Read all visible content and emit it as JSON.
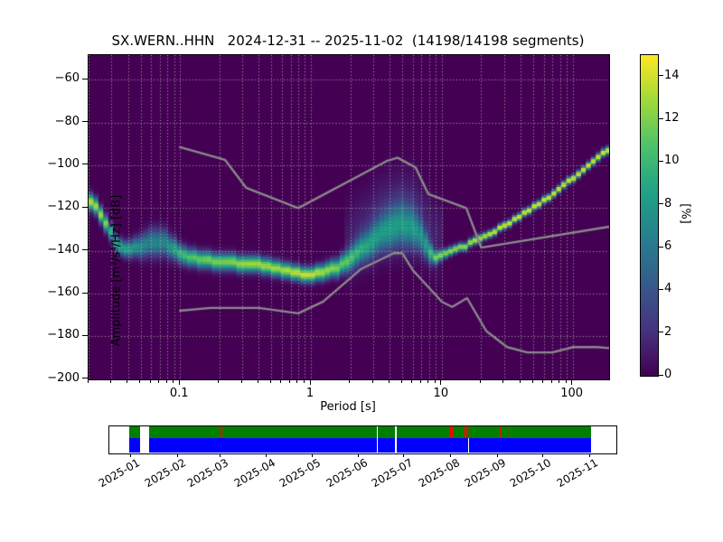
{
  "title": "SX.WERN..HHN   2024-12-31 -- 2025-11-02  (14198/14198 segments)",
  "station": "SX.WERN..HHN",
  "date_range": "2024-12-31 -- 2025-11-02",
  "segments": "14198/14198 segments",
  "axes": {
    "ylabel": "Amplitude [m²/s⁴/Hz] [dB]",
    "xlabel": "Period [s]",
    "y_ticks": [
      -60,
      -80,
      -100,
      -120,
      -140,
      -160,
      -180,
      -200
    ],
    "y_tick_labels": [
      "−60",
      "−80",
      "−100",
      "−120",
      "−140",
      "−160",
      "−180",
      "−200"
    ],
    "x_major_ticks": [
      0.1,
      1,
      10,
      100
    ],
    "x_major_labels": [
      "0.1",
      "1",
      "10",
      "100"
    ],
    "grid_color": "rgba(190,190,175,0.9)"
  },
  "colorbar": {
    "label": "[%]",
    "ticks": [
      0,
      2,
      4,
      6,
      8,
      10,
      12,
      14
    ],
    "vmax": 15,
    "vmin": 0
  },
  "chart_data": {
    "type": "heatmap",
    "title": "SX.WERN..HHN   2024-12-31 -- 2025-11-02  (14198/14198 segments)",
    "xlabel": "Period [s]",
    "ylabel": "Amplitude [m2/s4/Hz] [dB]",
    "x_scale": "log",
    "xlim": [
      0.02,
      190
    ],
    "ylim": [
      -200.1,
      -48.5
    ],
    "colormap": "viridis",
    "colorbar_label": "[%]",
    "colorbar_range": [
      0,
      15
    ],
    "background_value_color": "#440154",
    "period_bins_per_octave": 8,
    "db_bin_width": 1,
    "ppsd_mode_ridge": {
      "columns": [
        "period_s",
        "mode_db",
        "peak_percent",
        "sigma_db"
      ],
      "points": [
        [
          0.02,
          -115.5,
          14,
          2.5
        ],
        [
          0.022,
          -118,
          13,
          2.5
        ],
        [
          0.025,
          -123,
          13,
          2.5
        ],
        [
          0.028,
          -128,
          12,
          2.5
        ],
        [
          0.03,
          -132,
          9,
          2.5
        ],
        [
          0.033,
          -137.5,
          9,
          2.5
        ],
        [
          0.038,
          -139.5,
          9,
          2.5
        ],
        [
          0.045,
          -138.5,
          8,
          3
        ],
        [
          0.055,
          -136.5,
          7,
          4
        ],
        [
          0.065,
          -135.5,
          7,
          4.5
        ],
        [
          0.075,
          -136,
          7,
          4.2
        ],
        [
          0.085,
          -138,
          8,
          3.6
        ],
        [
          0.1,
          -141.5,
          10,
          3
        ],
        [
          0.12,
          -143,
          11,
          2.7
        ],
        [
          0.17,
          -144.5,
          12,
          2.6
        ],
        [
          0.23,
          -145.3,
          12,
          2.6
        ],
        [
          0.32,
          -145.8,
          13,
          2.5
        ],
        [
          0.44,
          -146.7,
          13,
          2.5
        ],
        [
          0.6,
          -148.5,
          13,
          2.4
        ],
        [
          0.8,
          -150.3,
          14,
          2.3
        ],
        [
          1.0,
          -151,
          14,
          2.3
        ],
        [
          1.25,
          -150,
          13,
          2.5
        ],
        [
          1.6,
          -147.5,
          12,
          2.8
        ],
        [
          2.0,
          -143.5,
          10,
          3.5
        ],
        [
          2.5,
          -139,
          8,
          4.5
        ],
        [
          3.2,
          -133.5,
          7,
          5.5
        ],
        [
          4.0,
          -130,
          7,
          6.5
        ],
        [
          5.0,
          -128,
          7,
          7
        ],
        [
          6.0,
          -129.5,
          7,
          6.5
        ],
        [
          7.0,
          -133.5,
          6.5,
          5
        ],
        [
          8.0,
          -139.5,
          8,
          3.5
        ],
        [
          8.8,
          -142.8,
          11,
          2
        ],
        [
          10,
          -141.8,
          12,
          1.5
        ],
        [
          12,
          -140,
          13,
          1.3
        ],
        [
          14.5,
          -138,
          13,
          1.2
        ],
        [
          17.5,
          -135.8,
          14,
          1.2
        ],
        [
          21,
          -133.2,
          14,
          1.1
        ],
        [
          26,
          -130.2,
          15,
          1.1
        ],
        [
          32,
          -127,
          15,
          1.1
        ],
        [
          40,
          -123.5,
          15,
          1.1
        ],
        [
          50,
          -119.8,
          15,
          1.1
        ],
        [
          62,
          -115.8,
          15,
          1.1
        ],
        [
          77,
          -111.5,
          15,
          1.1
        ],
        [
          95,
          -107,
          15,
          1.1
        ],
        [
          118,
          -102.3,
          15,
          1.1
        ],
        [
          147,
          -97.5,
          15,
          1.1
        ],
        [
          190,
          -92,
          15,
          1.2
        ]
      ]
    },
    "high_noise_halo": {
      "period_range": [
        1.8,
        10
      ],
      "center_offset_db": 9,
      "sigma_db": 11,
      "peak_percent": 2.1,
      "log_center_period": 4.3,
      "log_half_width": 0.55
    },
    "noise_models": {
      "name": "Peterson 1993 NHNM / NLNM",
      "line_color": "#8a8a8a",
      "nhnm": [
        [
          0.1,
          -91.5
        ],
        [
          0.22,
          -97.4
        ],
        [
          0.32,
          -110.5
        ],
        [
          0.8,
          -120.0
        ],
        [
          3.8,
          -98.0
        ],
        [
          4.6,
          -96.5
        ],
        [
          6.3,
          -101.0
        ],
        [
          7.9,
          -113.5
        ],
        [
          15.4,
          -120.0
        ],
        [
          20.0,
          -138.5
        ],
        [
          190.0,
          -128.7
        ]
      ],
      "nlnm": [
        [
          0.1,
          -168.0
        ],
        [
          0.17,
          -166.7
        ],
        [
          0.4,
          -166.7
        ],
        [
          0.8,
          -169.2
        ],
        [
          1.24,
          -163.7
        ],
        [
          2.4,
          -148.6
        ],
        [
          4.3,
          -141.1
        ],
        [
          5.0,
          -141.1
        ],
        [
          6.0,
          -149.0
        ],
        [
          10.0,
          -163.8
        ],
        [
          12.0,
          -166.2
        ],
        [
          15.6,
          -162.1
        ],
        [
          21.9,
          -177.5
        ],
        [
          31.6,
          -185.0
        ],
        [
          45.0,
          -187.5
        ],
        [
          70.0,
          -187.5
        ],
        [
          101.0,
          -185.0
        ],
        [
          154.0,
          -185.0
        ],
        [
          190.0,
          -185.5
        ]
      ]
    },
    "viridis_stops": [
      [
        0.0,
        "#440154"
      ],
      [
        0.14,
        "#46327e"
      ],
      [
        0.29,
        "#365c8d"
      ],
      [
        0.43,
        "#277f8e"
      ],
      [
        0.57,
        "#1fa187"
      ],
      [
        0.71,
        "#4ac16d"
      ],
      [
        0.86,
        "#a0da39"
      ],
      [
        1.0,
        "#fde725"
      ]
    ]
  },
  "timeline": {
    "start_date": "2024-12-31",
    "end_date": "2025-11-02",
    "total_days": 306,
    "coverage_start_day": 0,
    "coverage_end_day": 306,
    "gaps_days": [
      [
        7.2,
        13.2
      ],
      [
        164.0,
        164.5
      ],
      [
        176.3,
        176.8
      ]
    ],
    "bottom_bar_gaps_days": [
      [
        224.5,
        225.1
      ]
    ],
    "event_marks_days": [
      [
        60.7,
        61.4
      ],
      [
        212.3,
        214.2
      ],
      [
        221.3,
        221.9
      ],
      [
        223.6,
        224.2
      ],
      [
        226.1,
        226.7
      ],
      [
        245.3,
        245.9
      ],
      [
        251.3,
        251.9
      ]
    ],
    "month_tick_days": [
      1,
      32,
      60,
      91,
      121,
      152,
      182,
      213,
      244,
      274,
      305
    ],
    "month_labels": [
      "2025-01",
      "2025-02",
      "2025-03",
      "2025-04",
      "2025-05",
      "2025-06",
      "2025-07",
      "2025-08",
      "2025-09",
      "2025-10",
      "2025-11"
    ],
    "colors": {
      "top_bar": "#008000",
      "bottom_bar": "#0000ff",
      "event": "#ff0000",
      "gap": "#ffffff"
    }
  }
}
